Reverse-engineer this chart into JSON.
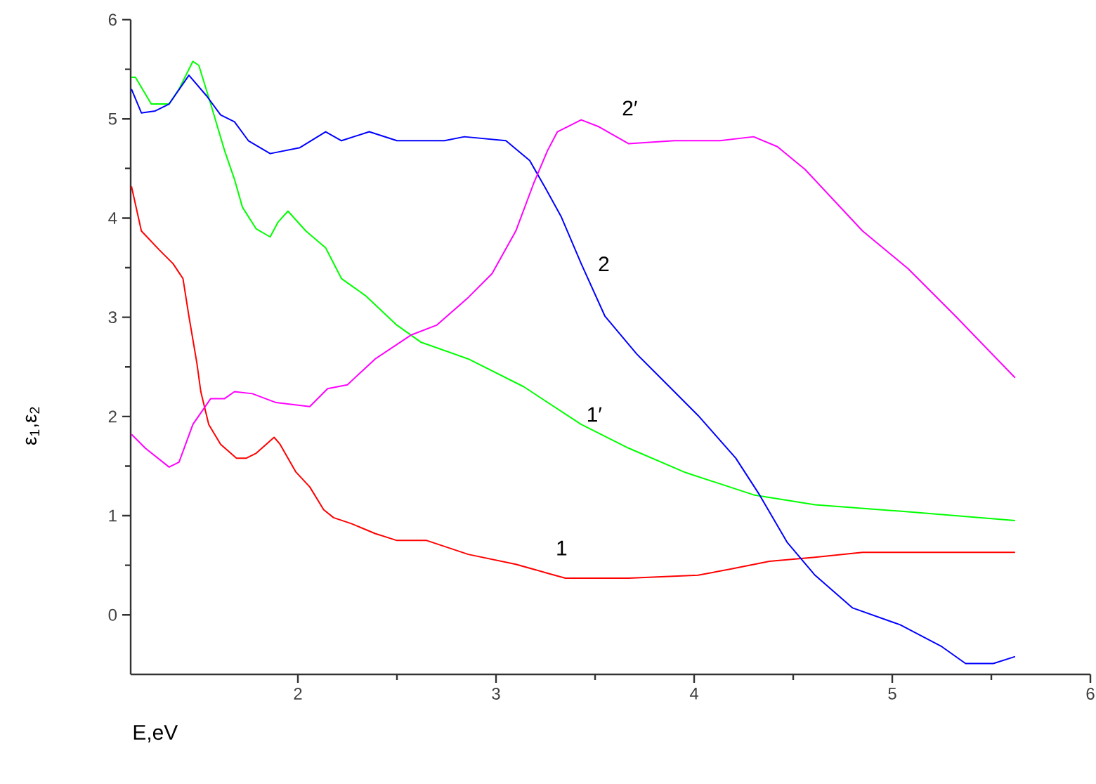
{
  "chart_data": {
    "type": "line",
    "xlabel": "E,eV",
    "ylabel": "ε$_{1}$,ε$_{2}$",
    "xlim": [
      1.156,
      6
    ],
    "ylim": [
      -0.6,
      6
    ],
    "xticks": [
      2,
      3,
      4,
      5,
      6
    ],
    "yticks": [
      0,
      1,
      2,
      3,
      4,
      5,
      6
    ],
    "series": [
      {
        "color": "#ff0000",
        "x": [
          1.16,
          1.21,
          1.3,
          1.37,
          1.42,
          1.45,
          1.49,
          1.51,
          1.55,
          1.61,
          1.69,
          1.74,
          1.79,
          1.88,
          1.91,
          1.99,
          2.06,
          2.13,
          2.18,
          2.27,
          2.39,
          2.5,
          2.65,
          2.86,
          3.1,
          3.26,
          3.35,
          3.67,
          4.02,
          4.18,
          4.38,
          4.61,
          4.85,
          5.62
        ],
        "values": [
          4.32,
          3.87,
          3.68,
          3.54,
          3.39,
          3.01,
          2.54,
          2.25,
          1.92,
          1.72,
          1.58,
          1.58,
          1.63,
          1.79,
          1.72,
          1.44,
          1.29,
          1.06,
          0.98,
          0.92,
          0.82,
          0.75,
          0.75,
          0.61,
          0.51,
          0.42,
          0.37,
          0.37,
          0.4,
          0.46,
          0.54,
          0.58,
          0.63,
          0.63
        ]
      },
      {
        "color": "#00ff00",
        "x": [
          1.16,
          1.18,
          1.26,
          1.35,
          1.4,
          1.47,
          1.5,
          1.56,
          1.63,
          1.68,
          1.72,
          1.79,
          1.86,
          1.9,
          1.95,
          2.04,
          2.14,
          2.22,
          2.34,
          2.5,
          2.62,
          2.86,
          3.14,
          3.43,
          3.67,
          3.95,
          4.3,
          4.61,
          5.08,
          5.62
        ],
        "values": [
          5.42,
          5.42,
          5.15,
          5.15,
          5.3,
          5.58,
          5.54,
          5.15,
          4.68,
          4.39,
          4.11,
          3.89,
          3.81,
          3.96,
          4.07,
          3.87,
          3.7,
          3.39,
          3.22,
          2.92,
          2.75,
          2.58,
          2.3,
          1.92,
          1.68,
          1.44,
          1.21,
          1.11,
          1.04,
          0.95
        ]
      },
      {
        "color": "#0000ff",
        "x": [
          1.16,
          1.21,
          1.28,
          1.35,
          1.45,
          1.54,
          1.61,
          1.68,
          1.75,
          1.86,
          2.01,
          2.14,
          2.22,
          2.36,
          2.5,
          2.74,
          2.84,
          3.05,
          3.17,
          3.25,
          3.33,
          3.43,
          3.55,
          3.71,
          3.9,
          4.02,
          4.21,
          4.33,
          4.47,
          4.61,
          4.8,
          5.04,
          5.25,
          5.37,
          5.51,
          5.62
        ],
        "values": [
          5.3,
          5.06,
          5.08,
          5.15,
          5.44,
          5.23,
          5.04,
          4.97,
          4.78,
          4.65,
          4.71,
          4.87,
          4.78,
          4.87,
          4.78,
          4.78,
          4.82,
          4.78,
          4.58,
          4.3,
          4.01,
          3.54,
          3.01,
          2.63,
          2.25,
          2.01,
          1.58,
          1.21,
          0.73,
          0.4,
          0.07,
          -0.1,
          -0.32,
          -0.49,
          -0.49,
          -0.42
        ]
      },
      {
        "color": "#ff00ff",
        "x": [
          1.16,
          1.23,
          1.35,
          1.4,
          1.47,
          1.56,
          1.63,
          1.68,
          1.77,
          1.89,
          2.06,
          2.15,
          2.25,
          2.39,
          2.57,
          2.7,
          2.86,
          2.98,
          3.1,
          3.19,
          3.26,
          3.31,
          3.43,
          3.52,
          3.67,
          3.9,
          4.13,
          4.3,
          4.42,
          4.56,
          4.85,
          5.08,
          5.32,
          5.62
        ],
        "values": [
          1.82,
          1.68,
          1.49,
          1.54,
          1.92,
          2.18,
          2.18,
          2.25,
          2.23,
          2.14,
          2.1,
          2.28,
          2.32,
          2.58,
          2.82,
          2.92,
          3.2,
          3.44,
          3.87,
          4.35,
          4.68,
          4.87,
          4.99,
          4.92,
          4.75,
          4.78,
          4.78,
          4.82,
          4.72,
          4.49,
          3.87,
          3.49,
          3.01,
          2.39
        ]
      }
    ],
    "annotations": [
      "1",
      "1′",
      "2",
      "2′"
    ]
  }
}
